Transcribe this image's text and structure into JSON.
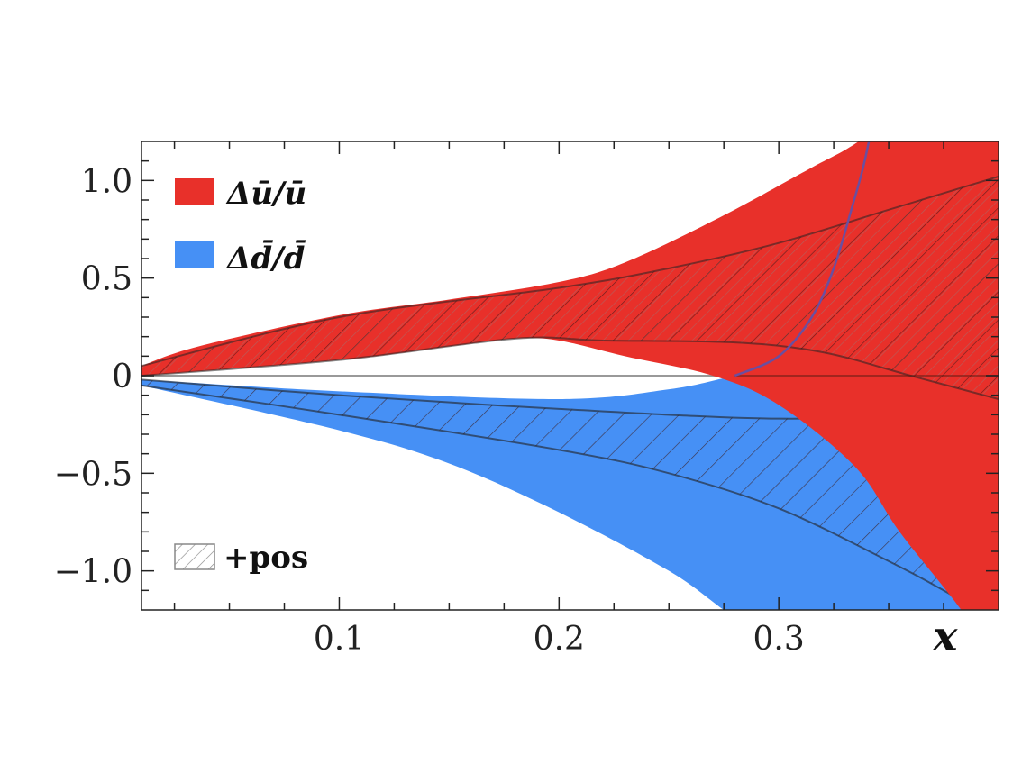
{
  "chart_data": {
    "type": "area",
    "title": "",
    "xlabel": "x",
    "ylabel": "",
    "xlim": [
      0.01,
      0.4
    ],
    "ylim": [
      -1.2,
      1.2
    ],
    "grid": false,
    "x_ticks": [
      0.1,
      0.2,
      0.3
    ],
    "x_tick_labels": [
      "0.1",
      "0.2",
      "0.3"
    ],
    "y_ticks": [
      1.0,
      0.5,
      0,
      -0.5,
      -1.0
    ],
    "y_tick_labels": [
      "1.0",
      "0.5",
      "0",
      "−0.5",
      "−1.0"
    ],
    "legend": {
      "placement": "top-left",
      "entries": [
        {
          "label": "Δū/ū",
          "color": "#e8302a"
        },
        {
          "label": "Δd̄/d̄",
          "color": "#4690f5"
        },
        {
          "label": "+pos",
          "style": "hatched"
        }
      ]
    },
    "series": [
      {
        "name": "Δū/ū band",
        "color": "#e8302a",
        "upper": [
          [
            0.01,
            0.05
          ],
          [
            0.036,
            0.15
          ],
          [
            0.1,
            0.31
          ],
          [
            0.15,
            0.39
          ],
          [
            0.2,
            0.48
          ],
          [
            0.23,
            0.58
          ],
          [
            0.273,
            0.81
          ],
          [
            0.314,
            1.06
          ],
          [
            0.335,
            1.19
          ],
          [
            0.36,
            1.4
          ],
          [
            0.4,
            1.6
          ]
        ],
        "lower": [
          [
            0.01,
            0.0
          ],
          [
            0.1,
            0.08
          ],
          [
            0.15,
            0.15
          ],
          [
            0.18,
            0.19
          ],
          [
            0.2,
            0.18
          ],
          [
            0.23,
            0.1
          ],
          [
            0.27,
            0.0
          ],
          [
            0.3,
            -0.15
          ],
          [
            0.335,
            -0.47
          ],
          [
            0.355,
            -0.8
          ],
          [
            0.383,
            -1.2
          ],
          [
            0.4,
            -1.5
          ]
        ]
      },
      {
        "name": "Δd̄/d̄ band",
        "color": "#4690f5",
        "upper": [
          [
            0.01,
            -0.02
          ],
          [
            0.1,
            -0.08
          ],
          [
            0.2,
            -0.12
          ],
          [
            0.25,
            -0.07
          ],
          [
            0.28,
            0.0
          ],
          [
            0.32,
            0.1
          ],
          [
            0.4,
            0.3
          ]
        ],
        "lower": [
          [
            0.01,
            -0.05
          ],
          [
            0.1,
            -0.28
          ],
          [
            0.15,
            -0.45
          ],
          [
            0.2,
            -0.7
          ],
          [
            0.25,
            -1.0
          ],
          [
            0.275,
            -1.2
          ],
          [
            0.3,
            -1.4
          ],
          [
            0.4,
            -1.4
          ]
        ]
      },
      {
        "name": "Δū/ū +pos",
        "style": "hatched",
        "upper": [
          [
            0.01,
            0.05
          ],
          [
            0.1,
            0.3
          ],
          [
            0.2,
            0.45
          ],
          [
            0.25,
            0.55
          ],
          [
            0.3,
            0.68
          ],
          [
            0.35,
            0.85
          ],
          [
            0.4,
            1.02
          ]
        ],
        "lower": [
          [
            0.01,
            0.0
          ],
          [
            0.1,
            0.08
          ],
          [
            0.18,
            0.19
          ],
          [
            0.22,
            0.18
          ],
          [
            0.28,
            0.17
          ],
          [
            0.32,
            0.12
          ],
          [
            0.36,
            0.0
          ],
          [
            0.4,
            -0.12
          ]
        ]
      },
      {
        "name": "Δd̄/d̄ +pos",
        "style": "hatched",
        "upper": [
          [
            0.01,
            -0.02
          ],
          [
            0.1,
            -0.1
          ],
          [
            0.2,
            -0.17
          ],
          [
            0.3,
            -0.22
          ],
          [
            0.35,
            -0.18
          ],
          [
            0.4,
            0.0
          ]
        ],
        "lower": [
          [
            0.01,
            -0.05
          ],
          [
            0.1,
            -0.2
          ],
          [
            0.2,
            -0.38
          ],
          [
            0.25,
            -0.5
          ],
          [
            0.3,
            -0.68
          ],
          [
            0.35,
            -0.95
          ],
          [
            0.375,
            -1.1
          ],
          [
            0.39,
            -1.2
          ]
        ]
      },
      {
        "name": "curve",
        "style": "line",
        "color": "#6a4fa0",
        "points": [
          [
            0.28,
            0.0
          ],
          [
            0.3,
            0.1
          ],
          [
            0.315,
            0.3
          ],
          [
            0.325,
            0.55
          ],
          [
            0.333,
            0.85
          ],
          [
            0.338,
            1.05
          ],
          [
            0.341,
            1.2
          ]
        ]
      }
    ]
  }
}
